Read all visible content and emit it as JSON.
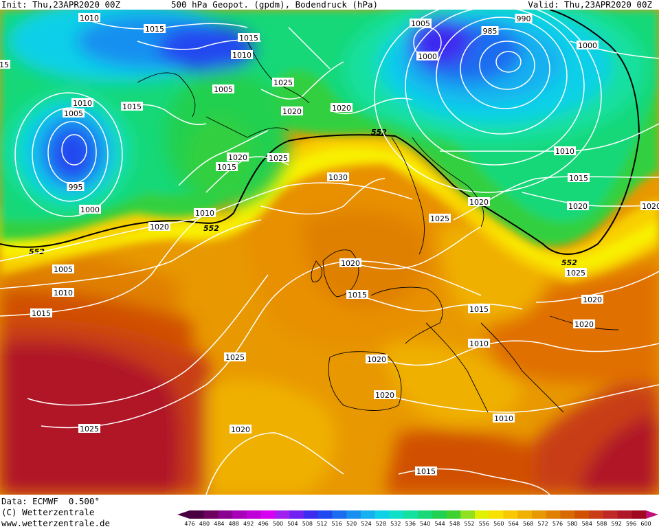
{
  "header": {
    "init": "Init: Thu,23APR2020 00Z",
    "title": "500 hPa Geopot. (gpdm), Bodendruck (hPa)",
    "valid": "Valid: Thu,23APR2020 00Z"
  },
  "footer": {
    "data": "Data: ECMWF  0.500°",
    "copyright": "(C) Wetterzentrale",
    "url": "www.wetterzentrale.de"
  },
  "scale": {
    "values": [
      "476",
      "480",
      "484",
      "488",
      "492",
      "496",
      "500",
      "504",
      "508",
      "512",
      "516",
      "520",
      "524",
      "528",
      "532",
      "536",
      "540",
      "544",
      "548",
      "552",
      "556",
      "560",
      "564",
      "568",
      "572",
      "576",
      "580",
      "584",
      "588",
      "592",
      "596",
      "600"
    ],
    "colors": [
      "#4a0040",
      "#6e0060",
      "#8a0090",
      "#a800b8",
      "#c000d8",
      "#d800f0",
      "#a020f0",
      "#7020f0",
      "#3c2cf0",
      "#2048f0",
      "#1c6cf0",
      "#1890f0",
      "#14b0f0",
      "#10d0e8",
      "#10e0c8",
      "#14e0a0",
      "#18d878",
      "#20d050",
      "#40d030",
      "#90e020",
      "#e0f000",
      "#f8e000",
      "#f8c800",
      "#f0b000",
      "#e89800",
      "#e08000",
      "#d86800",
      "#d05000",
      "#c83c18",
      "#c02828",
      "#b01828",
      "#a00820"
    ],
    "arrow_colors": [
      "#4a0040",
      "#c0107a"
    ]
  },
  "isolines": {
    "label_552": "552",
    "pressure_labels": [
      "1010",
      "1015",
      "1015",
      "1010",
      "1005",
      "1025",
      "1020",
      "1020",
      "1005",
      "1000",
      "990",
      "985",
      "1000",
      "15",
      "1010",
      "1015",
      "1005",
      "995",
      "1000",
      "1020",
      "1015",
      "1010",
      "1020",
      "1025",
      "1030",
      "1025",
      "1020",
      "1005",
      "1010",
      "1015",
      "1010",
      "1015",
      "1020",
      "1025",
      "1020",
      "1020",
      "1020",
      "1015",
      "1015",
      "1010",
      "1025",
      "1020",
      "1020",
      "1010",
      "1025",
      "1020",
      "1015",
      "1020"
    ]
  }
}
